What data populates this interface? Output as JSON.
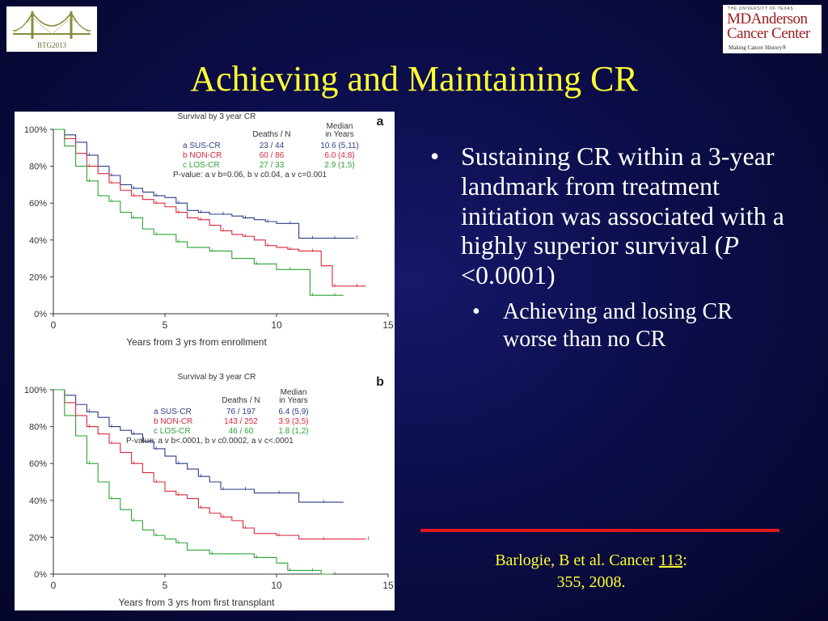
{
  "logo_left": {
    "caption": "BTG2013"
  },
  "logo_right": {
    "line_small": "THE UNIVERSITY OF TEXAS",
    "line1": "MDAnderson",
    "line2": "Cancer Center",
    "tagline": "Making Cancer History®"
  },
  "title": "Achieving and Maintaining CR",
  "bullets": {
    "main_pre": "Sustaining CR within a 3-year landmark from treatment initiation was associated with a highly superior survival (",
    "main_p": "P",
    "main_post": " <0.0001)",
    "sub": "Achieving and losing CR worse than no CR"
  },
  "citation": {
    "pre": "Barlogie, B et al. Cancer ",
    "vol": "113",
    "post": ":",
    "pages": "355, 2008."
  },
  "colors": {
    "sus_cr": "#2b3f86",
    "non_cr": "#d8283a",
    "los_cr": "#2ca334",
    "title_yellow": "#ffff33"
  },
  "chart_data": [
    {
      "type": "line",
      "panel": "a",
      "title": "Survival by 3 year CR",
      "xlabel": "Years from 3 yrs from enrollment",
      "ylabel": "",
      "xlim": [
        0,
        15
      ],
      "ylim": [
        0,
        100
      ],
      "x_ticks": [
        "0",
        "5",
        "10",
        "15"
      ],
      "y_ticks": [
        "0%",
        "20%",
        "40%",
        "60%",
        "80%",
        "100%"
      ],
      "legend_header": {
        "deaths": "Deaths / N",
        "median": "Median\nin Years"
      },
      "pvalue": "P-value: a v b=0.06, b v c0.04, a v c=0.001",
      "series": [
        {
          "name": "a SUS-CR",
          "deaths_n": "23 / 44",
          "median": "10.6  (5,11)",
          "color": "#2b3f86",
          "x": [
            0,
            0.5,
            1,
            1.5,
            2,
            2.5,
            3,
            3.5,
            4,
            4.5,
            5,
            5.5,
            6,
            6.5,
            7,
            7.5,
            8,
            8.5,
            9,
            9.5,
            10,
            10.5,
            11,
            11.5,
            12,
            12.5,
            13,
            13.5
          ],
          "y": [
            100,
            97,
            93,
            86,
            80,
            75,
            70,
            68,
            66,
            64,
            63,
            60,
            56,
            55,
            54,
            54,
            53,
            52,
            51,
            50,
            49,
            49,
            41,
            41,
            41,
            41,
            41,
            41
          ]
        },
        {
          "name": "b NON-CR",
          "deaths_n": "60 / 86",
          "median": "6.0  (4,8)",
          "color": "#d8283a",
          "x": [
            0,
            0.5,
            1,
            1.5,
            2,
            2.5,
            3,
            3.5,
            4,
            4.5,
            5,
            5.5,
            6,
            6.5,
            7,
            7.5,
            8,
            8.5,
            9,
            9.5,
            10,
            10.5,
            11,
            11.5,
            12,
            12.5,
            13,
            13.5,
            14
          ],
          "y": [
            100,
            95,
            87,
            80,
            76,
            71,
            67,
            64,
            62,
            60,
            58,
            55,
            52,
            51,
            48,
            45,
            43,
            42,
            40,
            37,
            36,
            35,
            34,
            34,
            26,
            15,
            15,
            15,
            15
          ]
        },
        {
          "name": "c LOS-CR",
          "deaths_n": "27 / 33",
          "median": "2.9  (1,5)",
          "color": "#2ca334",
          "x": [
            0,
            0.5,
            1,
            1.5,
            2,
            2.5,
            3,
            3.5,
            4,
            4.5,
            5,
            5.5,
            6,
            7,
            8,
            9,
            10,
            10.5,
            11,
            11.5,
            12,
            12.5,
            13
          ],
          "y": [
            100,
            91,
            80,
            72,
            64,
            61,
            55,
            52,
            46,
            43,
            43,
            39,
            36,
            34,
            30,
            27,
            24,
            24,
            24,
            10,
            10,
            10,
            10
          ]
        }
      ]
    },
    {
      "type": "line",
      "panel": "b",
      "title": "Survival by 3 year CR",
      "xlabel": "Years from 3 yrs from first transplant",
      "ylabel": "",
      "xlim": [
        0,
        15
      ],
      "ylim": [
        0,
        100
      ],
      "x_ticks": [
        "0",
        "5",
        "10",
        "15"
      ],
      "y_ticks": [
        "0%",
        "20%",
        "40%",
        "60%",
        "80%",
        "100%"
      ],
      "legend_header": {
        "deaths": "Deaths / N",
        "median": "Median\nin Years"
      },
      "pvalue": "P-value: a v b<.0001, b v c0.0002, a v c<.0001",
      "series": [
        {
          "name": "a SUS-CR",
          "deaths_n": "76 / 197",
          "median": "6.4  (5,9)",
          "color": "#2b3f86",
          "x": [
            0,
            0.5,
            1,
            1.5,
            2,
            2.5,
            3,
            3.5,
            4,
            4.5,
            5,
            5.5,
            6,
            6.5,
            7,
            7.5,
            8,
            8.5,
            9,
            10,
            11,
            12,
            13
          ],
          "y": [
            100,
            97,
            92,
            88,
            85,
            80,
            78,
            76,
            72,
            68,
            64,
            60,
            57,
            53,
            50,
            46,
            46,
            46,
            44,
            44,
            39,
            39,
            39
          ]
        },
        {
          "name": "b NON-CR",
          "deaths_n": "143 / 252",
          "median": "3.9  (3,5)",
          "color": "#d8283a",
          "x": [
            0,
            0.5,
            1,
            1.5,
            2,
            2.5,
            3,
            3.5,
            4,
            4.5,
            5,
            5.5,
            6,
            6.5,
            7,
            7.5,
            8,
            8.5,
            9,
            10,
            11,
            12,
            13,
            14
          ],
          "y": [
            100,
            93,
            86,
            80,
            76,
            71,
            66,
            60,
            55,
            50,
            45,
            43,
            41,
            36,
            33,
            31,
            29,
            25,
            22,
            21,
            19,
            19,
            19,
            19
          ]
        },
        {
          "name": "c LOS-CR",
          "deaths_n": "46 / 60",
          "median": "1.8  (1,2)",
          "color": "#2ca334",
          "x": [
            0,
            0.5,
            1,
            1.5,
            2,
            2.5,
            3,
            3.5,
            4,
            4.5,
            5,
            5.5,
            6,
            7,
            8,
            9,
            10,
            10.5,
            11,
            11.5,
            12,
            12.5
          ],
          "y": [
            100,
            86,
            75,
            60,
            50,
            41,
            35,
            29,
            24,
            21,
            19,
            17,
            13,
            11,
            11,
            9,
            6,
            2,
            2,
            2,
            0,
            0
          ]
        }
      ]
    }
  ]
}
